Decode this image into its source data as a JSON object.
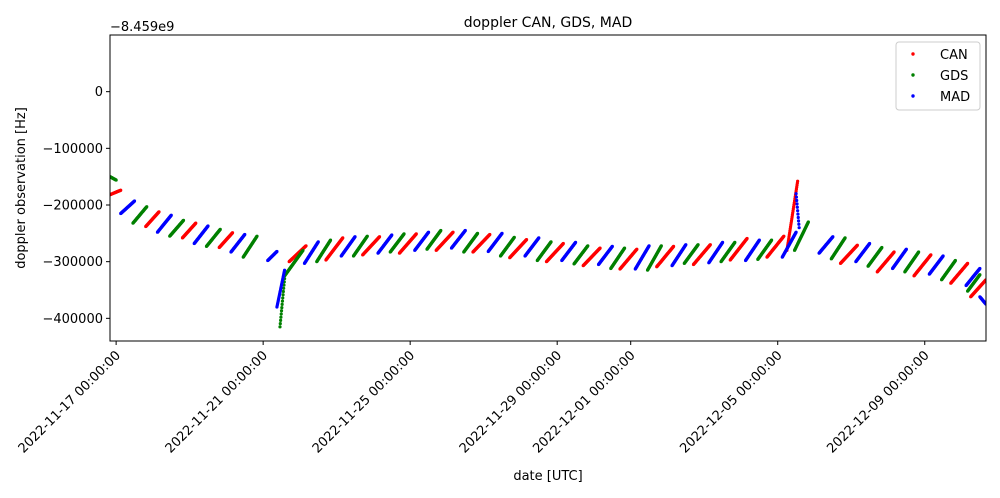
{
  "chart_data": {
    "type": "scatter",
    "title": "doppler CAN, GDS, MAD",
    "xlabel": "date [UTC]",
    "ylabel": "doppler observation [Hz]",
    "offset_text": "−8.459e9",
    "x_range": [
      "2022-11-16 20:00:00",
      "2022-12-10 16:00:00"
    ],
    "ylim": [
      -440000,
      100000
    ],
    "x_ticks": [
      "2022-11-17 00:00:00",
      "2022-11-21 00:00:00",
      "2022-11-25 00:00:00",
      "2022-11-29 00:00:00",
      "2022-12-01 00:00:00",
      "2022-12-05 00:00:00",
      "2022-12-09 00:00:00"
    ],
    "y_ticks": [
      0,
      -100000,
      -200000,
      -300000,
      -400000
    ],
    "y_tick_labels": [
      "0",
      "−100000",
      "−200000",
      "−300000",
      "−400000"
    ],
    "grid": false,
    "legend_position": "top-right",
    "series": [
      {
        "name": "CAN",
        "color": "#ff0000",
        "passes": [
          {
            "start": "2022-11-16 19:50",
            "end": "2022-11-17 03:00",
            "y0": -182000,
            "y1": -174000
          },
          {
            "start": "2022-11-17 19:20",
            "end": "2022-11-18 04:00",
            "y0": -238000,
            "y1": -212000
          },
          {
            "start": "2022-11-18 19:20",
            "end": "2022-11-19 04:00",
            "y0": -258000,
            "y1": -232000
          },
          {
            "start": "2022-11-19 19:20",
            "end": "2022-11-20 04:00",
            "y0": -275000,
            "y1": -249000
          },
          {
            "start": "2022-11-21 17:00",
            "end": "2022-11-22 04:00",
            "y0": -300000,
            "y1": -272000
          },
          {
            "start": "2022-11-22 17:00",
            "end": "2022-11-23 04:00",
            "y0": -297000,
            "y1": -258000
          },
          {
            "start": "2022-11-23 17:00",
            "end": "2022-11-24 04:00",
            "y0": -288000,
            "y1": -256000
          },
          {
            "start": "2022-11-24 17:00",
            "end": "2022-11-25 04:00",
            "y0": -285000,
            "y1": -251000
          },
          {
            "start": "2022-11-25 17:00",
            "end": "2022-11-26 04:00",
            "y0": -280000,
            "y1": -248000
          },
          {
            "start": "2022-11-26 17:00",
            "end": "2022-11-27 04:00",
            "y0": -283000,
            "y1": -252000
          },
          {
            "start": "2022-11-27 17:00",
            "end": "2022-11-28 04:00",
            "y0": -293000,
            "y1": -261000
          },
          {
            "start": "2022-11-28 17:00",
            "end": "2022-11-29 04:00",
            "y0": -300000,
            "y1": -268000
          },
          {
            "start": "2022-11-29 17:00",
            "end": "2022-11-30 04:00",
            "y0": -307000,
            "y1": -276000
          },
          {
            "start": "2022-11-30 17:00",
            "end": "2022-12-01 04:00",
            "y0": -313000,
            "y1": -278000
          },
          {
            "start": "2022-12-01 17:00",
            "end": "2022-12-02 04:00",
            "y0": -309000,
            "y1": -273000
          },
          {
            "start": "2022-12-02 17:00",
            "end": "2022-12-03 04:00",
            "y0": -305000,
            "y1": -270000
          },
          {
            "start": "2022-12-03 17:00",
            "end": "2022-12-04 04:00",
            "y0": -297000,
            "y1": -259000
          },
          {
            "start": "2022-12-04 17:00",
            "end": "2022-12-05 04:00",
            "y0": -292000,
            "y1": -255000
          },
          {
            "start": "2022-12-05 06:00",
            "end": "2022-12-05 13:00",
            "y0": -280000,
            "y1": -158000
          },
          {
            "start": "2022-12-06 17:00",
            "end": "2022-12-07 04:00",
            "y0": -303000,
            "y1": -271000
          },
          {
            "start": "2022-12-07 17:00",
            "end": "2022-12-08 04:00",
            "y0": -318000,
            "y1": -283000
          },
          {
            "start": "2022-12-08 17:00",
            "end": "2022-12-09 04:00",
            "y0": -325000,
            "y1": -288000
          },
          {
            "start": "2022-12-09 17:00",
            "end": "2022-12-10 04:00",
            "y0": -338000,
            "y1": -303000
          },
          {
            "start": "2022-12-10 06:00",
            "end": "2022-12-10 16:00",
            "y0": -362000,
            "y1": -332000
          }
        ]
      },
      {
        "name": "GDS",
        "color": "#008000",
        "passes": [
          {
            "start": "2022-11-16 20:00",
            "end": "2022-11-17 00:00",
            "y0": -150000,
            "y1": -156000
          },
          {
            "start": "2022-11-17 11:00",
            "end": "2022-11-17 20:00",
            "y0": -232000,
            "y1": -203000
          },
          {
            "start": "2022-11-18 11:00",
            "end": "2022-11-18 20:00",
            "y0": -255000,
            "y1": -227000
          },
          {
            "start": "2022-11-19 11:00",
            "end": "2022-11-19 20:00",
            "y0": -273000,
            "y1": -243000
          },
          {
            "start": "2022-11-20 11:00",
            "end": "2022-11-20 20:00",
            "y0": -292000,
            "y1": -255000
          },
          {
            "start": "2022-11-21 11:00",
            "end": "2022-11-21 14:00",
            "y0": -415000,
            "y1": -330000
          },
          {
            "start": "2022-11-21 14:00",
            "end": "2022-11-22 02:00",
            "y0": -325000,
            "y1": -280000
          },
          {
            "start": "2022-11-22 11:00",
            "end": "2022-11-22 20:00",
            "y0": -300000,
            "y1": -262000
          },
          {
            "start": "2022-11-23 11:00",
            "end": "2022-11-23 20:00",
            "y0": -290000,
            "y1": -255000
          },
          {
            "start": "2022-11-24 11:00",
            "end": "2022-11-24 20:00",
            "y0": -283000,
            "y1": -251000
          },
          {
            "start": "2022-11-25 11:00",
            "end": "2022-11-25 20:00",
            "y0": -278000,
            "y1": -245000
          },
          {
            "start": "2022-11-26 11:00",
            "end": "2022-11-26 20:00",
            "y0": -283000,
            "y1": -250000
          },
          {
            "start": "2022-11-27 11:00",
            "end": "2022-11-27 20:00",
            "y0": -290000,
            "y1": -257000
          },
          {
            "start": "2022-11-28 11:00",
            "end": "2022-11-28 20:00",
            "y0": -298000,
            "y1": -265000
          },
          {
            "start": "2022-11-29 11:00",
            "end": "2022-11-29 20:00",
            "y0": -304000,
            "y1": -272000
          },
          {
            "start": "2022-11-30 11:00",
            "end": "2022-11-30 20:00",
            "y0": -312000,
            "y1": -276000
          },
          {
            "start": "2022-12-01 11:00",
            "end": "2022-12-01 20:00",
            "y0": -315000,
            "y1": -272000
          },
          {
            "start": "2022-12-02 11:00",
            "end": "2022-12-02 20:00",
            "y0": -303000,
            "y1": -270000
          },
          {
            "start": "2022-12-03 11:00",
            "end": "2022-12-03 20:00",
            "y0": -300000,
            "y1": -266000
          },
          {
            "start": "2022-12-04 11:00",
            "end": "2022-12-04 20:00",
            "y0": -296000,
            "y1": -262000
          },
          {
            "start": "2022-12-05 11:00",
            "end": "2022-12-05 20:00",
            "y0": -280000,
            "y1": -230000
          },
          {
            "start": "2022-12-06 11:00",
            "end": "2022-12-06 20:00",
            "y0": -295000,
            "y1": -258000
          },
          {
            "start": "2022-12-07 11:00",
            "end": "2022-12-07 20:00",
            "y0": -308000,
            "y1": -275000
          },
          {
            "start": "2022-12-08 11:00",
            "end": "2022-12-08 20:00",
            "y0": -318000,
            "y1": -283000
          },
          {
            "start": "2022-12-09 11:00",
            "end": "2022-12-09 20:00",
            "y0": -332000,
            "y1": -298000
          },
          {
            "start": "2022-12-10 04:00",
            "end": "2022-12-10 12:00",
            "y0": -352000,
            "y1": -323000
          }
        ]
      },
      {
        "name": "MAD",
        "color": "#0000ff",
        "passes": [
          {
            "start": "2022-11-17 03:00",
            "end": "2022-11-17 12:00",
            "y0": -215000,
            "y1": -193000
          },
          {
            "start": "2022-11-18 03:00",
            "end": "2022-11-18 12:00",
            "y0": -248000,
            "y1": -218000
          },
          {
            "start": "2022-11-19 03:00",
            "end": "2022-11-19 12:00",
            "y0": -268000,
            "y1": -237000
          },
          {
            "start": "2022-11-20 03:00",
            "end": "2022-11-20 12:00",
            "y0": -283000,
            "y1": -252000
          },
          {
            "start": "2022-11-21 03:00",
            "end": "2022-11-21 09:00",
            "y0": -298000,
            "y1": -282000
          },
          {
            "start": "2022-11-21 09:00",
            "end": "2022-11-21 14:00",
            "y0": -380000,
            "y1": -315000
          },
          {
            "start": "2022-11-22 03:00",
            "end": "2022-11-22 12:00",
            "y0": -303000,
            "y1": -265000
          },
          {
            "start": "2022-11-23 03:00",
            "end": "2022-11-23 12:00",
            "y0": -290000,
            "y1": -256000
          },
          {
            "start": "2022-11-24 03:00",
            "end": "2022-11-24 12:00",
            "y0": -285000,
            "y1": -253000
          },
          {
            "start": "2022-11-25 03:00",
            "end": "2022-11-25 12:00",
            "y0": -280000,
            "y1": -248000
          },
          {
            "start": "2022-11-26 03:00",
            "end": "2022-11-26 12:00",
            "y0": -276000,
            "y1": -245000
          },
          {
            "start": "2022-11-27 03:00",
            "end": "2022-11-27 12:00",
            "y0": -282000,
            "y1": -250000
          },
          {
            "start": "2022-11-28 03:00",
            "end": "2022-11-28 12:00",
            "y0": -290000,
            "y1": -258000
          },
          {
            "start": "2022-11-29 03:00",
            "end": "2022-11-29 12:00",
            "y0": -298000,
            "y1": -266000
          },
          {
            "start": "2022-11-30 03:00",
            "end": "2022-11-30 12:00",
            "y0": -305000,
            "y1": -273000
          },
          {
            "start": "2022-12-01 03:00",
            "end": "2022-12-01 12:00",
            "y0": -313000,
            "y1": -272000
          },
          {
            "start": "2022-12-02 03:00",
            "end": "2022-12-02 12:00",
            "y0": -307000,
            "y1": -270000
          },
          {
            "start": "2022-12-03 03:00",
            "end": "2022-12-03 12:00",
            "y0": -302000,
            "y1": -266000
          },
          {
            "start": "2022-12-04 03:00",
            "end": "2022-12-04 12:00",
            "y0": -298000,
            "y1": -262000
          },
          {
            "start": "2022-12-05 03:00",
            "end": "2022-12-05 12:00",
            "y0": -292000,
            "y1": -248000
          },
          {
            "start": "2022-12-05 12:00",
            "end": "2022-12-05 14:00",
            "y0": -180000,
            "y1": -240000
          },
          {
            "start": "2022-12-06 03:00",
            "end": "2022-12-06 12:00",
            "y0": -285000,
            "y1": -256000
          },
          {
            "start": "2022-12-07 03:00",
            "end": "2022-12-07 12:00",
            "y0": -300000,
            "y1": -268000
          },
          {
            "start": "2022-12-08 03:00",
            "end": "2022-12-08 12:00",
            "y0": -312000,
            "y1": -278000
          },
          {
            "start": "2022-12-09 03:00",
            "end": "2022-12-09 12:00",
            "y0": -322000,
            "y1": -290000
          },
          {
            "start": "2022-12-10 03:00",
            "end": "2022-12-10 12:00",
            "y0": -342000,
            "y1": -312000
          },
          {
            "start": "2022-12-10 12:00",
            "end": "2022-12-10 16:00",
            "y0": -362000,
            "y1": -375000
          }
        ]
      }
    ]
  }
}
